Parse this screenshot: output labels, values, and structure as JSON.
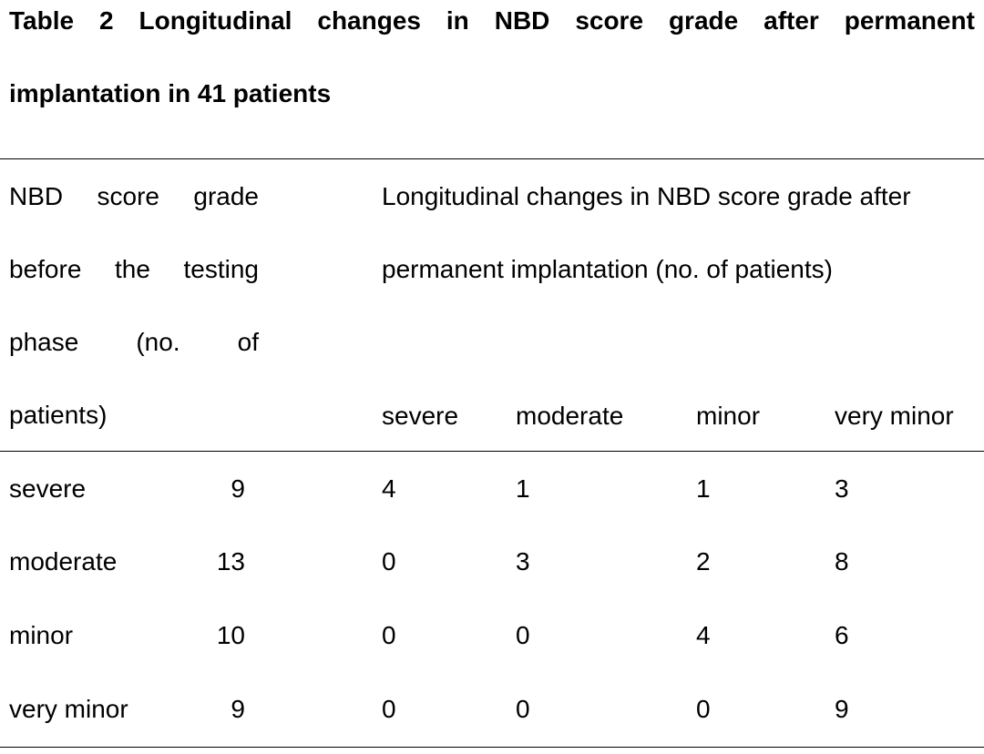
{
  "title": {
    "line1_words": [
      "Table",
      "2",
      "Longitudinal",
      "changes",
      "in",
      "NBD",
      "score",
      "grade",
      "after",
      "permanent"
    ],
    "line2": "implantation in 41 patients"
  },
  "header": {
    "row_header_lines": [
      [
        "NBD",
        "score",
        "grade"
      ],
      [
        "before",
        "the",
        "testing"
      ],
      [
        "phase",
        "(no.",
        "of"
      ],
      [
        "patients)"
      ]
    ],
    "group_header_line1": "Longitudinal changes in NBD score grade after",
    "group_header_line2": "permanent implantation (no. of patients)",
    "columns": [
      "severe",
      "moderate",
      "minor",
      "very minor"
    ]
  },
  "rows": [
    {
      "grade": "severe",
      "count": "9",
      "values": [
        "4",
        "1",
        "1",
        "3"
      ]
    },
    {
      "grade": "moderate",
      "count": "13",
      "values": [
        "0",
        "3",
        "2",
        "8"
      ]
    },
    {
      "grade": "minor",
      "count": "10",
      "values": [
        "0",
        "0",
        "4",
        "6"
      ]
    },
    {
      "grade": "very minor",
      "count": "9",
      "values": [
        "0",
        "0",
        "0",
        "9"
      ]
    }
  ]
}
